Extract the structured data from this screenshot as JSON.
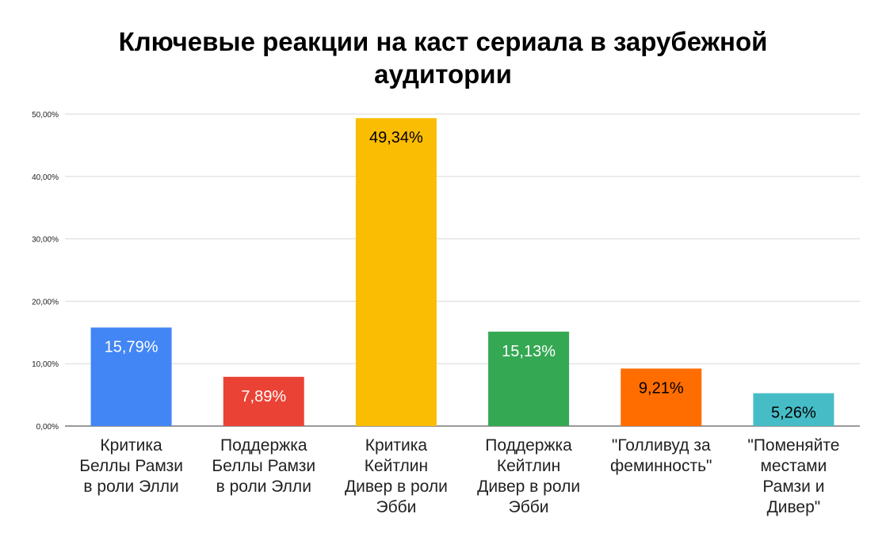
{
  "chart_data": {
    "type": "bar",
    "title_lines": [
      "Ключевые реакции на каст сериала в зарубежной",
      "аудитории"
    ],
    "categories": [
      [
        "Критика",
        "Беллы Рамзи",
        "в роли Элли"
      ],
      [
        "Поддержка",
        "Беллы Рамзи",
        "в роли Элли"
      ],
      [
        "Критика",
        "Кейтлин",
        "Дивер в роли",
        "Эбби"
      ],
      [
        "Поддержка",
        "Кейтлин",
        "Дивер в роли",
        "Эбби"
      ],
      [
        "\"Голливуд за",
        "феминность\""
      ],
      [
        "\"Поменяйте",
        "местами",
        "Рамзи и",
        "Дивер\""
      ]
    ],
    "values": [
      15.79,
      7.89,
      49.34,
      15.13,
      9.21,
      5.26
    ],
    "data_labels": [
      "15,79%",
      "7,89%",
      "49,34%",
      "15,13%",
      "9,21%",
      "5,26%"
    ],
    "bar_colors": [
      "#4285f4",
      "#ea4335",
      "#fbbc04",
      "#34a853",
      "#ff6d01",
      "#46bdc6"
    ],
    "label_colors": [
      "#ffffff",
      "#ffffff",
      "#000000",
      "#ffffff",
      "#000000",
      "#000000"
    ],
    "ylim": [
      0,
      50
    ],
    "yticks": [
      0,
      10,
      20,
      30,
      40,
      50
    ],
    "ytick_labels": [
      "0,00%",
      "10,00%",
      "20,00%",
      "30,00%",
      "40,00%",
      "50,00%"
    ],
    "grid": true,
    "legend": "none"
  }
}
